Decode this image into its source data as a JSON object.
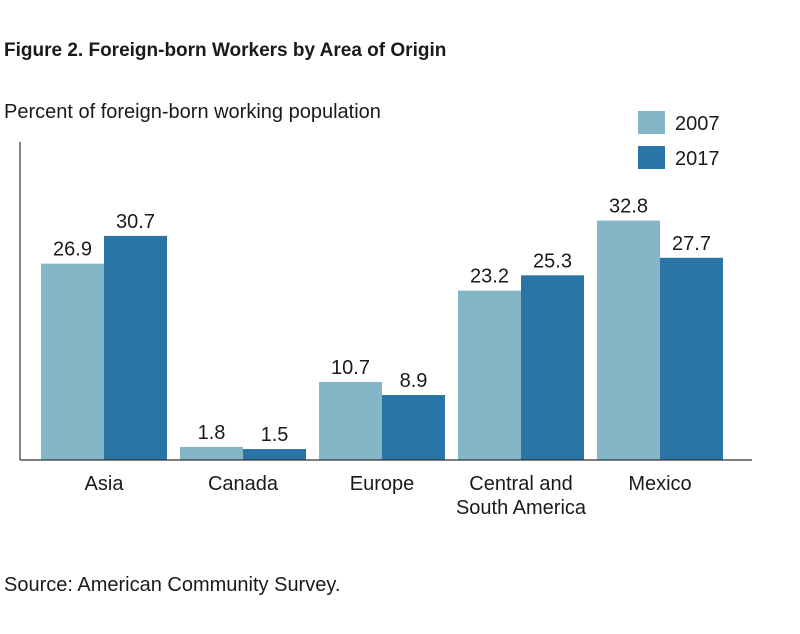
{
  "figure": {
    "title": "Figure 2. Foreign-born Workers by Area of Origin",
    "source": "Source: American Community Survey."
  },
  "chart_data": {
    "type": "bar",
    "title": "Figure 2. Foreign-born Workers by Area of Origin",
    "ylabel": "Percent of foreign-born working population",
    "xlabel": "",
    "categories": [
      [
        "Asia"
      ],
      [
        "Canada"
      ],
      [
        "Europe"
      ],
      [
        "Central and",
        "South America"
      ],
      [
        "Mexico"
      ]
    ],
    "series": [
      {
        "name": "2007",
        "color": "#84b6c8",
        "values": [
          26.9,
          1.8,
          10.7,
          23.2,
          32.8
        ]
      },
      {
        "name": "2017",
        "color": "#2a74a8",
        "values": [
          30.7,
          1.5,
          8.9,
          25.3,
          27.7
        ]
      }
    ],
    "ylim": [
      0,
      40
    ],
    "grid": false,
    "legend": "top-right",
    "data_labels": true
  }
}
